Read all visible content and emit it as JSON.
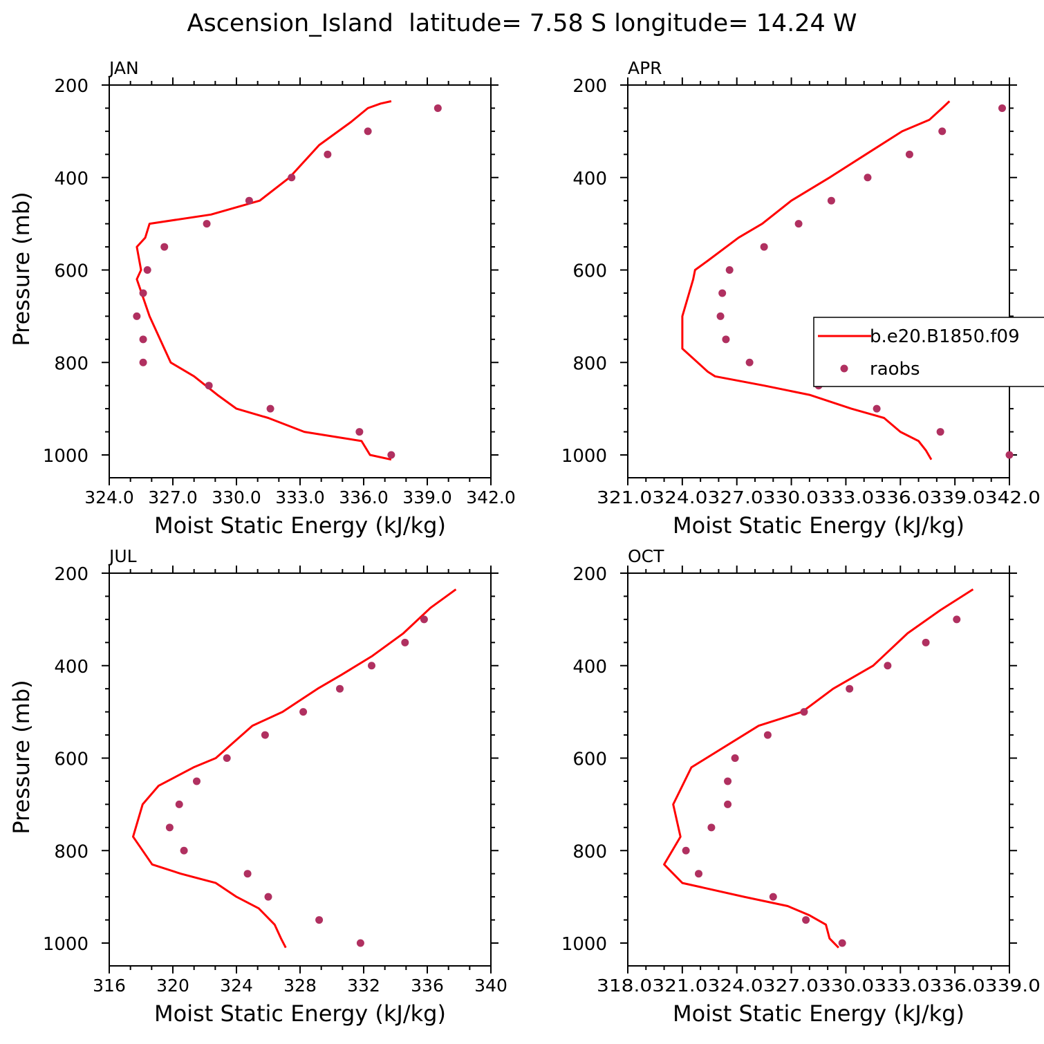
{
  "page_title": "Ascension_Island  latitude= 7.58 S longitude= 14.24 W",
  "colors": {
    "model_line": "#ff0000",
    "obs_marker": "#b03060",
    "axis": "#000000"
  },
  "legend": {
    "entries": [
      {
        "label": "b.e20.B1850.f09",
        "style": "line",
        "color": "#ff0000"
      },
      {
        "label": "raobs",
        "style": "marker",
        "color": "#b03060"
      }
    ]
  },
  "chart_data": [
    {
      "type": "line",
      "title": "JAN",
      "xlabel": "Moist Static Energy (kJ/kg)",
      "ylabel": "Pressure (mb)",
      "xlim": [
        324.0,
        342.0
      ],
      "ylim": [
        1000,
        200
      ],
      "xticks": [
        324.0,
        327.0,
        330.0,
        333.0,
        336.0,
        339.0,
        342.0
      ],
      "xtick_labels": [
        "324.0",
        "327.0",
        "330.0",
        "333.0",
        "336.0",
        "339.0",
        "342.0"
      ],
      "yticks": [
        200,
        400,
        600,
        800,
        1000
      ],
      "ytick_labels": [
        "200",
        "400",
        "600",
        "800",
        "1000"
      ],
      "series": [
        {
          "name": "b.e20.B1850.f09",
          "kind": "line",
          "x": [
            337.3,
            336.3,
            335.9,
            333.2,
            331.5,
            330.0,
            329.1,
            328.0,
            326.9,
            326.6,
            325.9,
            325.3,
            325.5,
            325.3,
            325.7,
            325.9,
            328.8,
            331.1,
            332.5,
            333.9,
            335.4,
            336.2,
            336.8,
            337.3
          ],
          "y": [
            1010,
            1000,
            970,
            950,
            920,
            900,
            870,
            830,
            800,
            770,
            700,
            620,
            600,
            550,
            530,
            500,
            480,
            450,
            400,
            330,
            280,
            250,
            240,
            235
          ]
        },
        {
          "name": "raobs",
          "kind": "scatter",
          "x": [
            337.3,
            335.8,
            331.6,
            328.7,
            325.6,
            325.6,
            325.3,
            325.6,
            325.8,
            326.6,
            328.6,
            330.6,
            332.6,
            334.3,
            336.2,
            339.5
          ],
          "y": [
            1000,
            950,
            900,
            850,
            800,
            750,
            700,
            650,
            600,
            550,
            500,
            450,
            400,
            350,
            300,
            250
          ]
        }
      ]
    },
    {
      "type": "line",
      "title": "APR",
      "xlabel": "Moist Static Energy (kJ/kg)",
      "ylabel": "",
      "xlim": [
        321.0,
        342.0
      ],
      "ylim": [
        1000,
        200
      ],
      "xticks": [
        321.0,
        324.0,
        327.0,
        330.0,
        333.0,
        336.0,
        339.0,
        342.0
      ],
      "xtick_labels": [
        "321.0",
        "324.0",
        "327.0",
        "330.0",
        "333.0",
        "336.0",
        "339.0",
        "342.0"
      ],
      "xtick_label_text": "321.0324.0327.0330.0333.0336.0339.0342.0",
      "yticks": [
        200,
        400,
        600,
        800,
        1000
      ],
      "ytick_labels": [
        "200",
        "400",
        "600",
        "800",
        "1000"
      ],
      "series": [
        {
          "name": "b.e20.B1850.f09",
          "kind": "line",
          "x": [
            337.7,
            337.4,
            337.0,
            336.0,
            335.1,
            333.3,
            331.0,
            328.5,
            325.8,
            325.4,
            324.0,
            324.0,
            324.6,
            324.7,
            325.4,
            327.1,
            328.4,
            330.0,
            332.1,
            334.1,
            336.1,
            337.6,
            338.3,
            338.7
          ],
          "y": [
            1010,
            990,
            970,
            950,
            920,
            900,
            870,
            850,
            830,
            820,
            770,
            700,
            620,
            600,
            580,
            530,
            500,
            450,
            400,
            350,
            300,
            275,
            250,
            235
          ]
        },
        {
          "name": "raobs",
          "kind": "scatter",
          "x": [
            342.0,
            338.2,
            334.7,
            331.5,
            327.7,
            326.4,
            326.1,
            326.2,
            326.6,
            328.5,
            330.4,
            332.2,
            334.2,
            336.5,
            338.3,
            341.6
          ],
          "y": [
            1000,
            950,
            900,
            850,
            800,
            750,
            700,
            650,
            600,
            550,
            500,
            450,
            400,
            350,
            300,
            250
          ]
        }
      ]
    },
    {
      "type": "line",
      "title": "JUL",
      "xlabel": "Moist Static Energy (kJ/kg)",
      "ylabel": "Pressure (mb)",
      "xlim": [
        316,
        340
      ],
      "ylim": [
        1000,
        200
      ],
      "xticks": [
        316,
        320,
        324,
        328,
        332,
        336,
        340
      ],
      "xtick_labels": [
        "316",
        "320",
        "324",
        "328",
        "332",
        "336",
        "340"
      ],
      "yticks": [
        200,
        400,
        600,
        800,
        1000
      ],
      "ytick_labels": [
        "200",
        "400",
        "600",
        "800",
        "1000"
      ],
      "series": [
        {
          "name": "b.e20.B1850.f09",
          "kind": "line",
          "x": [
            327.1,
            326.8,
            326.4,
            325.4,
            324.0,
            322.7,
            320.5,
            318.7,
            317.5,
            318.1,
            319.1,
            321.3,
            322.7,
            325.0,
            326.9,
            329.1,
            330.6,
            332.5,
            334.5,
            336.2,
            337.8
          ],
          "y": [
            1010,
            990,
            960,
            925,
            900,
            870,
            850,
            830,
            770,
            700,
            660,
            620,
            600,
            530,
            500,
            450,
            420,
            380,
            330,
            275,
            235
          ]
        },
        {
          "name": "raobs",
          "kind": "scatter",
          "x": [
            331.8,
            329.2,
            326.0,
            324.7,
            320.7,
            319.8,
            320.4,
            321.5,
            323.4,
            325.8,
            328.2,
            330.5,
            332.5,
            334.6,
            335.8
          ],
          "y": [
            1000,
            950,
            900,
            850,
            800,
            750,
            700,
            650,
            600,
            550,
            500,
            450,
            400,
            350,
            300
          ]
        }
      ]
    },
    {
      "type": "line",
      "title": "OCT",
      "xlabel": "Moist Static Energy (kJ/kg)",
      "ylabel": "",
      "xlim": [
        318.0,
        339.0
      ],
      "ylim": [
        1000,
        200
      ],
      "xticks": [
        318.0,
        321.0,
        324.0,
        327.0,
        330.0,
        333.0,
        336.0,
        339.0
      ],
      "xtick_labels": [
        "318.0",
        "321.0",
        "324.0",
        "327.0",
        "330.0",
        "333.0",
        "336.0",
        "339.0"
      ],
      "xtick_label_text": "318.0321.0324.0327.0330.0333.0336.0339.0",
      "yticks": [
        200,
        400,
        600,
        800,
        1000
      ],
      "ytick_labels": [
        "200",
        "400",
        "600",
        "800",
        "1000"
      ],
      "series": [
        {
          "name": "b.e20.B1850.f09",
          "kind": "line",
          "x": [
            329.6,
            329.1,
            328.9,
            328.0,
            326.8,
            324.4,
            321.0,
            320.0,
            320.9,
            320.5,
            321.5,
            325.2,
            327.6,
            329.3,
            331.5,
            333.4,
            335.2,
            337.0
          ],
          "y": [
            1010,
            990,
            960,
            940,
            920,
            900,
            870,
            830,
            770,
            700,
            620,
            530,
            500,
            450,
            400,
            330,
            280,
            235
          ]
        },
        {
          "name": "raobs",
          "kind": "scatter",
          "x": [
            329.8,
            327.8,
            326.0,
            321.9,
            321.2,
            322.6,
            323.5,
            323.5,
            323.9,
            325.7,
            327.7,
            330.2,
            332.3,
            334.4,
            336.1
          ],
          "y": [
            1000,
            950,
            900,
            850,
            800,
            750,
            700,
            650,
            600,
            550,
            500,
            450,
            400,
            350,
            300
          ]
        }
      ]
    }
  ]
}
